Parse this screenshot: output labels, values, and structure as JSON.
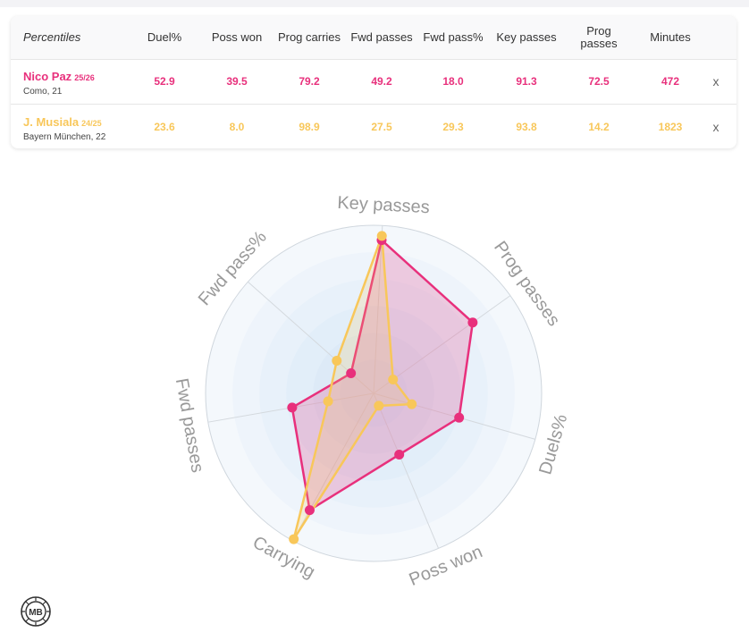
{
  "table": {
    "header_label": "Percentiles",
    "columns": [
      "Duel%",
      "Poss won",
      "Prog carries",
      "Fwd passes",
      "Fwd pass%",
      "Key passes",
      "Prog passes",
      "Minutes"
    ],
    "close_label": "x",
    "players": [
      {
        "name": "Nico Paz",
        "season": "25/26",
        "club": "Como, 21",
        "color": "#e8307c",
        "values": [
          "52.9",
          "39.5",
          "79.2",
          "49.2",
          "18.0",
          "91.3",
          "72.5",
          "472"
        ]
      },
      {
        "name": "J. Musiala",
        "season": "24/25",
        "club": "Bayern München, 22",
        "color": "#f8c75a",
        "values": [
          "23.6",
          "8.0",
          "98.9",
          "27.5",
          "29.3",
          "93.8",
          "14.2",
          "1823"
        ]
      }
    ]
  },
  "chart_data": {
    "type": "radar",
    "axes": [
      "Key passes",
      "Prog passes",
      "Duels%",
      "Poss won",
      "Carrying",
      "Fwd passes",
      "Fwd pass%"
    ],
    "range": [
      0,
      100
    ],
    "grid": "concentric circles",
    "series": [
      {
        "name": "Nico Paz",
        "color": "#e8307c",
        "values": [
          91.3,
          72.5,
          52.9,
          39.5,
          79.2,
          49.2,
          18.0
        ]
      },
      {
        "name": "J. Musiala",
        "color": "#f8c75a",
        "values": [
          93.8,
          14.2,
          23.6,
          8.0,
          98.9,
          27.5,
          29.3
        ]
      }
    ]
  },
  "logo": {
    "text": "MB",
    "icon": "mb-logo-icon"
  }
}
